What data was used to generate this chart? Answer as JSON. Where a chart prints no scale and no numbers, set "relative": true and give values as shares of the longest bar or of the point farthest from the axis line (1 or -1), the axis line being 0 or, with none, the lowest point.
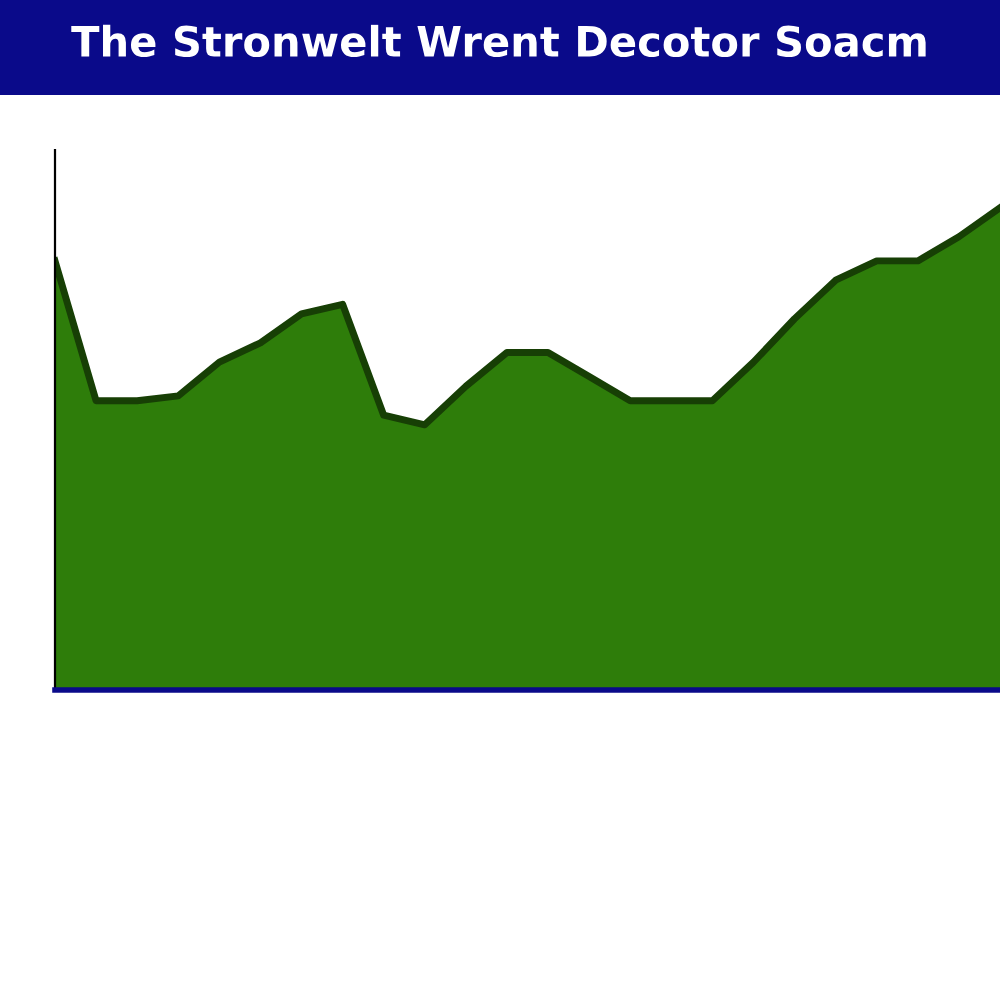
{
  "chart_data": {
    "type": "area",
    "title": "The Stronwelt Wrent Decotor Soacm",
    "relative": true,
    "categories": [
      null,
      null,
      null,
      null,
      null,
      null,
      null,
      null,
      null,
      null,
      null,
      null,
      null,
      null,
      null,
      null,
      null,
      null,
      null,
      null,
      null,
      null,
      null,
      null
    ],
    "series": [
      {
        "color": "#2e7d0a",
        "values": [
          0.89,
          0.6,
          0.6,
          0.61,
          0.68,
          0.72,
          0.78,
          0.8,
          0.57,
          0.55,
          0.63,
          0.7,
          0.7,
          0.65,
          0.6,
          0.6,
          0.6,
          0.68,
          0.77,
          0.85,
          0.89,
          0.89,
          0.94,
          1.0
        ]
      }
    ]
  }
}
